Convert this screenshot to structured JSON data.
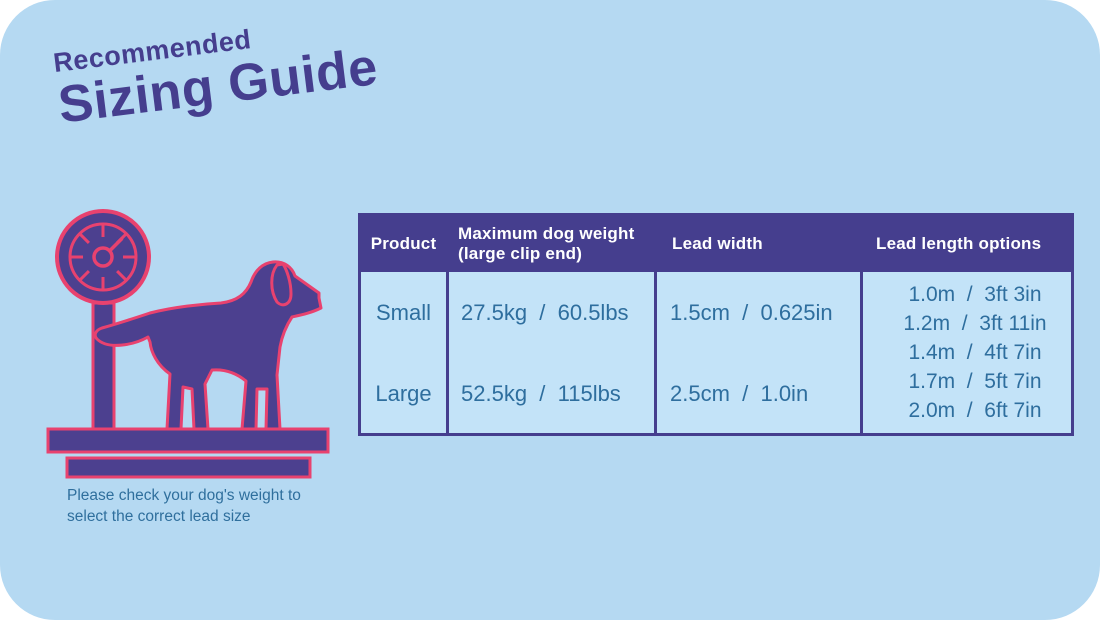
{
  "title": {
    "line1": "Recommended",
    "line2": "Sizing Guide"
  },
  "note": {
    "line1": "Please check your dog's weight to",
    "line2": "select the correct lead size"
  },
  "illustration": {
    "name": "dog-on-weighing-scale"
  },
  "table": {
    "headers": {
      "product": "Product",
      "max_weight_line1": "Maximum dog weight",
      "max_weight_line2": "(large clip end)",
      "lead_width": "Lead width",
      "lead_length": "Lead length options"
    },
    "rows": [
      {
        "product": "Small",
        "max_weight": "27.5kg  /  60.5lbs",
        "lead_width": "1.5cm  /  0.625in"
      },
      {
        "product": "Large",
        "max_weight": "52.5kg  /  115lbs",
        "lead_width": "2.5cm  /  1.0in"
      }
    ],
    "lead_length_options": [
      "1.0m  /  3ft 3in",
      "1.2m  /  3ft 11in",
      "1.4m  /  4ft 7in",
      "1.7m  /  5ft 7in",
      "2.0m  /  6ft 7in"
    ]
  },
  "colors": {
    "card_background": "#b5d9f2",
    "cell_background": "#c3e3f8",
    "primary_purple": "#453e8e",
    "accent_pink": "#e8426f",
    "body_text_blue": "#2e6e9e",
    "header_text": "#ffffff"
  }
}
